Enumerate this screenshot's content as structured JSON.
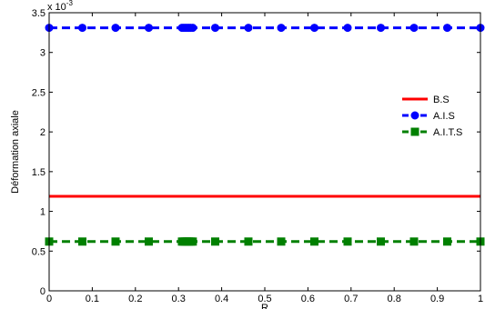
{
  "chart_data": {
    "type": "line",
    "title": "",
    "xlabel": "R",
    "ylabel": "Déformation axiale",
    "y_exponent_label": "x 10",
    "y_exponent_power": "-3",
    "xlim": [
      0,
      1
    ],
    "ylim": [
      0,
      3.5
    ],
    "x_ticks": [
      0,
      0.1,
      0.2,
      0.3,
      0.4,
      0.5,
      0.6,
      0.7,
      0.8,
      0.9,
      1
    ],
    "x_tick_labels": [
      "0",
      "0.1",
      "0.2",
      "0.3",
      "0.4",
      "0.5",
      "0.6",
      "0.7",
      "0.8",
      "0.9",
      "1"
    ],
    "y_ticks": [
      0,
      0.5,
      1,
      1.5,
      2,
      2.5,
      3,
      3.5
    ],
    "y_tick_labels": [
      "0",
      "0.5",
      "1",
      "1.5",
      "2",
      "2.5",
      "3",
      "3.5"
    ],
    "grid": false,
    "legend_position": "right",
    "series": [
      {
        "name": "B.S",
        "color": "#ff0000",
        "line_style": "solid",
        "marker": "none",
        "x": [
          0,
          1
        ],
        "y": [
          1.19,
          1.19
        ]
      },
      {
        "name": "A.I.S",
        "color": "#0000ff",
        "line_style": "dashed",
        "marker": "circle",
        "x": [
          0,
          0.077,
          0.154,
          0.231,
          0.308,
          0.312,
          0.316,
          0.32,
          0.324,
          0.328,
          0.333,
          0.385,
          0.462,
          0.538,
          0.615,
          0.692,
          0.769,
          0.846,
          0.923,
          1
        ],
        "y": [
          3.31,
          3.31,
          3.31,
          3.31,
          3.31,
          3.31,
          3.31,
          3.31,
          3.31,
          3.31,
          3.31,
          3.31,
          3.31,
          3.31,
          3.31,
          3.31,
          3.31,
          3.31,
          3.31,
          3.31
        ]
      },
      {
        "name": "A.I.T.S",
        "color": "#008000",
        "line_style": "dashed",
        "marker": "square",
        "x": [
          0,
          0.077,
          0.154,
          0.231,
          0.308,
          0.312,
          0.316,
          0.32,
          0.324,
          0.328,
          0.333,
          0.385,
          0.462,
          0.538,
          0.615,
          0.692,
          0.769,
          0.846,
          0.923,
          1
        ],
        "y": [
          0.62,
          0.62,
          0.62,
          0.62,
          0.62,
          0.62,
          0.62,
          0.62,
          0.62,
          0.62,
          0.62,
          0.62,
          0.62,
          0.62,
          0.62,
          0.62,
          0.62,
          0.62,
          0.62,
          0.62
        ]
      }
    ]
  }
}
